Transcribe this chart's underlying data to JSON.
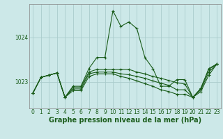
{
  "bg_color": "#cce8e8",
  "grid_color": "#aacccc",
  "line_color": "#1a5c1a",
  "xlabel": "Graphe pression niveau de la mer (hPa)",
  "ylim": [
    1022.4,
    1024.75
  ],
  "yticks": [
    1023,
    1024
  ],
  "xlim": [
    -0.5,
    23.5
  ],
  "xticks": [
    0,
    1,
    2,
    3,
    4,
    5,
    6,
    7,
    8,
    9,
    10,
    11,
    12,
    13,
    14,
    15,
    16,
    17,
    18,
    19,
    20,
    21,
    22,
    23
  ],
  "series": [
    [
      1022.75,
      1023.1,
      1023.15,
      1023.2,
      1022.65,
      1022.9,
      1022.9,
      1023.3,
      1023.55,
      1023.55,
      1024.6,
      1024.25,
      1024.35,
      1024.2,
      1023.55,
      1023.3,
      1022.9,
      1022.9,
      1023.05,
      1023.05,
      1022.65,
      1022.85,
      1023.3,
      1023.4
    ],
    [
      1022.75,
      1023.1,
      1023.15,
      1023.2,
      1022.65,
      1022.88,
      1022.88,
      1023.22,
      1023.28,
      1023.28,
      1023.28,
      1023.28,
      1023.28,
      1023.22,
      1023.18,
      1023.12,
      1023.08,
      1023.03,
      1022.98,
      1022.95,
      1022.65,
      1022.85,
      1023.28,
      1023.4
    ],
    [
      1022.75,
      1023.1,
      1023.15,
      1023.2,
      1022.65,
      1022.84,
      1022.84,
      1023.18,
      1023.22,
      1023.22,
      1023.22,
      1023.18,
      1023.16,
      1023.12,
      1023.08,
      1023.02,
      1022.97,
      1022.92,
      1022.82,
      1022.82,
      1022.65,
      1022.82,
      1023.22,
      1023.4
    ],
    [
      1022.75,
      1023.1,
      1023.15,
      1023.2,
      1022.65,
      1022.8,
      1022.8,
      1023.12,
      1023.18,
      1023.18,
      1023.18,
      1023.12,
      1023.08,
      1023.02,
      1022.96,
      1022.9,
      1022.82,
      1022.78,
      1022.72,
      1022.72,
      1022.65,
      1022.78,
      1023.15,
      1023.4
    ]
  ],
  "marker": "+",
  "markersize": 3,
  "linewidth": 0.8,
  "tick_fontsize": 5.5,
  "xlabel_fontsize": 7.0
}
